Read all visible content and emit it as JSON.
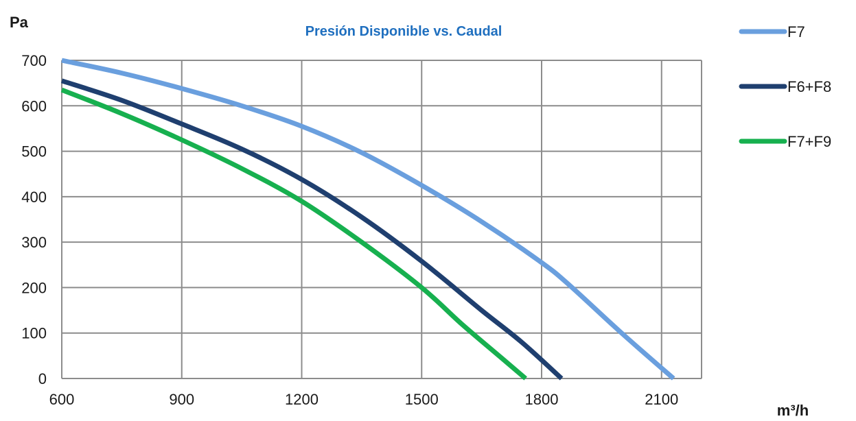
{
  "chart_data": {
    "type": "line",
    "title": "Presión Disponible vs. Caudal",
    "title_color": "#1F6FBF",
    "ylabel": "Pa",
    "xlabel": "m³/h",
    "xlim": [
      600,
      2200
    ],
    "ylim": [
      0,
      700
    ],
    "x_ticks": [
      600,
      900,
      1200,
      1500,
      1800,
      2100
    ],
    "y_ticks": [
      0,
      100,
      200,
      300,
      400,
      500,
      600,
      700
    ],
    "grid": true,
    "legend_position": "right",
    "series": [
      {
        "name": "F7",
        "color": "#6A9FDE",
        "points": [
          [
            600,
            700
          ],
          [
            750,
            672
          ],
          [
            900,
            638
          ],
          [
            1050,
            600
          ],
          [
            1200,
            555
          ],
          [
            1350,
            497
          ],
          [
            1500,
            425
          ],
          [
            1650,
            345
          ],
          [
            1800,
            255
          ],
          [
            1870,
            205
          ],
          [
            2000,
            100
          ],
          [
            2130,
            0
          ]
        ]
      },
      {
        "name": "F6+F8",
        "color": "#1F3F6F",
        "points": [
          [
            600,
            655
          ],
          [
            750,
            612
          ],
          [
            900,
            560
          ],
          [
            1050,
            505
          ],
          [
            1200,
            438
          ],
          [
            1350,
            355
          ],
          [
            1500,
            258
          ],
          [
            1650,
            150
          ],
          [
            1750,
            80
          ],
          [
            1850,
            0
          ]
        ]
      },
      {
        "name": "F7+F9",
        "color": "#17B04F",
        "points": [
          [
            600,
            635
          ],
          [
            750,
            583
          ],
          [
            900,
            525
          ],
          [
            1050,
            462
          ],
          [
            1200,
            390
          ],
          [
            1350,
            300
          ],
          [
            1500,
            200
          ],
          [
            1600,
            120
          ],
          [
            1700,
            45
          ],
          [
            1760,
            0
          ]
        ]
      }
    ]
  }
}
